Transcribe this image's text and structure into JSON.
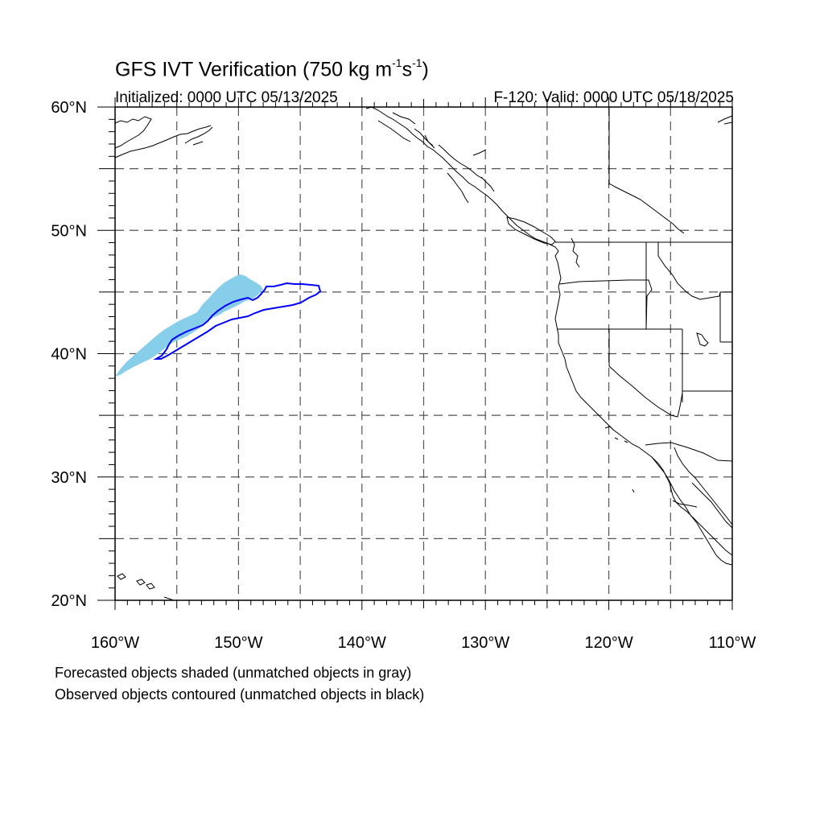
{
  "title": {
    "main": "GFS IVT Verification (750 kg m",
    "exp1": "-1",
    "mid": "s",
    "exp2": "-1",
    "end": ")"
  },
  "subtitle_left": "Initialized: 0000 UTC 05/13/2025",
  "subtitle_right": "F-120: Valid: 0000 UTC 05/18/2025",
  "footer": {
    "line1": "Forecasted objects shaded (unmatched objects in gray)",
    "line2": "Observed objects contoured (unmatched objects in black)"
  },
  "map": {
    "lon_range": [
      -160,
      -110
    ],
    "lat_range": [
      20,
      60
    ],
    "lat_labels": [
      "20",
      "30",
      "40",
      "50",
      "60"
    ],
    "lon_labels": [
      "160",
      "150",
      "140",
      "130",
      "120",
      "110"
    ],
    "lat_suffix": "N",
    "lon_suffix": "W",
    "gridlines": "dashed every 5 degrees",
    "colors": {
      "forecast_fill": "#87ceeb",
      "observed_contour": "#0000ff",
      "coastline": "#000000",
      "grid": "#555555"
    }
  }
}
